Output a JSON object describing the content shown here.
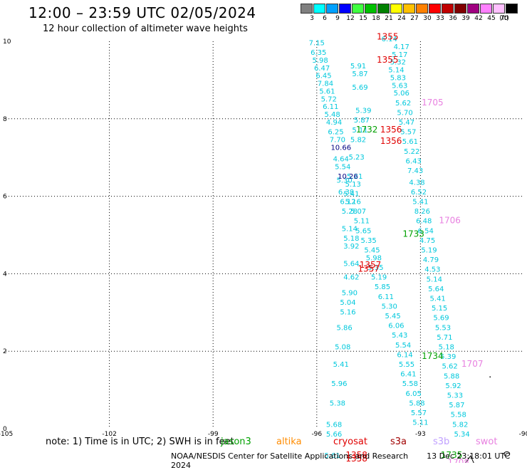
{
  "header": {
    "title": "12:00 – 23:59 UTC 02/05/2024",
    "subtitle": "12 hour collection of altimeter wave heights"
  },
  "scale": {
    "unit": "(ft)",
    "bins": [
      {
        "color": "#808080",
        "label": "3"
      },
      {
        "color": "#00ffff",
        "label": "6"
      },
      {
        "color": "#00a0ff",
        "label": "9"
      },
      {
        "color": "#0000ff",
        "label": "12"
      },
      {
        "color": "#40ff40",
        "label": "15"
      },
      {
        "color": "#00c000",
        "label": "18"
      },
      {
        "color": "#008000",
        "label": "21"
      },
      {
        "color": "#ffff00",
        "label": "24"
      },
      {
        "color": "#ffc000",
        "label": "27"
      },
      {
        "color": "#ff8000",
        "label": "30"
      },
      {
        "color": "#ff0000",
        "label": "33"
      },
      {
        "color": "#c00000",
        "label": "36"
      },
      {
        "color": "#800000",
        "label": "39"
      },
      {
        "color": "#a00080",
        "label": "42"
      },
      {
        "color": "#ff80ff",
        "label": "45"
      },
      {
        "color": "#ffc0ff",
        "label": "70"
      },
      {
        "color": "#000000",
        "label": ""
      }
    ]
  },
  "axes": {
    "lon_labels": [
      "-105",
      "-102",
      "-99",
      "-96",
      "-93",
      "-90"
    ],
    "lat_labels": [
      "0",
      "2",
      "4",
      "6",
      "8",
      "10"
    ]
  },
  "tracks": [
    {
      "color": "#00c8dc",
      "size": 10,
      "points": [
        {
          "lon": -96.0,
          "lat": 9.9,
          "t": "7.15"
        },
        {
          "lon": -95.95,
          "lat": 9.65,
          "t": "6.35"
        },
        {
          "lon": -95.9,
          "lat": 9.45,
          "t": "5.98"
        },
        {
          "lon": -95.85,
          "lat": 9.25,
          "t": "6.47"
        },
        {
          "lon": -95.8,
          "lat": 9.05,
          "t": "6.45"
        },
        {
          "lon": -95.75,
          "lat": 8.85,
          "t": "7.84"
        },
        {
          "lon": -95.7,
          "lat": 8.65,
          "t": "5.61"
        },
        {
          "lon": -95.65,
          "lat": 8.45,
          "t": "5.72"
        },
        {
          "lon": -95.6,
          "lat": 8.25,
          "t": "6.11"
        },
        {
          "lon": -95.55,
          "lat": 8.05,
          "t": "5.48"
        },
        {
          "lon": -95.5,
          "lat": 7.85,
          "t": "4.94"
        },
        {
          "lon": -95.45,
          "lat": 7.6,
          "t": "6.25"
        },
        {
          "lon": -95.4,
          "lat": 7.4,
          "t": "7.70"
        },
        {
          "lon": -95.3,
          "lat": 6.9,
          "t": "4.64"
        },
        {
          "lon": -95.25,
          "lat": 6.7,
          "t": "5.54"
        },
        {
          "lon": -95.2,
          "lat": 6.35,
          "t": "5.30"
        },
        {
          "lon": -95.15,
          "lat": 6.05,
          "t": "6.38"
        },
        {
          "lon": -95.1,
          "lat": 5.8,
          "t": "6.12"
        },
        {
          "lon": -95.05,
          "lat": 5.55,
          "t": "5.28"
        },
        {
          "lon": -95.05,
          "lat": 5.1,
          "t": "5.14"
        },
        {
          "lon": -95.0,
          "lat": 4.85,
          "t": "5.18"
        },
        {
          "lon": -95.0,
          "lat": 4.65,
          "t": "3.92"
        },
        {
          "lon": -95.0,
          "lat": 4.2,
          "t": "5.64"
        },
        {
          "lon": -95.0,
          "lat": 3.85,
          "t": "4.62"
        },
        {
          "lon": -95.05,
          "lat": 3.45,
          "t": "5.90"
        },
        {
          "lon": -95.1,
          "lat": 3.2,
          "t": "5.04"
        },
        {
          "lon": -95.1,
          "lat": 2.95,
          "t": "5.16"
        },
        {
          "lon": -95.2,
          "lat": 2.55,
          "t": "5.86"
        },
        {
          "lon": -95.25,
          "lat": 2.05,
          "t": "5.08"
        },
        {
          "lon": -95.3,
          "lat": 1.6,
          "t": "5.41"
        },
        {
          "lon": -95.35,
          "lat": 1.1,
          "t": "5.96"
        },
        {
          "lon": -95.4,
          "lat": 0.6,
          "t": "5.38"
        },
        {
          "lon": -95.5,
          "lat": 0.05,
          "t": "5.68"
        },
        {
          "lon": -95.5,
          "lat": -0.2,
          "t": "5.66"
        },
        {
          "lon": -95.55,
          "lat": -0.75,
          "t": "5.61"
        }
      ]
    },
    {
      "color": "#00c8dc",
      "size": 10,
      "points": [
        {
          "lon": -93.9,
          "lat": 10.0,
          "t": "6.14"
        },
        {
          "lon": -93.55,
          "lat": 9.8,
          "t": "4.17"
        },
        {
          "lon": -93.6,
          "lat": 9.6,
          "t": "5.17"
        },
        {
          "lon": -93.65,
          "lat": 9.4,
          "t": "5.32"
        },
        {
          "lon": -93.7,
          "lat": 9.2,
          "t": "5.14"
        },
        {
          "lon": -93.65,
          "lat": 9.0,
          "t": "5.83"
        },
        {
          "lon": -93.6,
          "lat": 8.8,
          "t": "5.63"
        },
        {
          "lon": -93.55,
          "lat": 8.6,
          "t": "5.06"
        },
        {
          "lon": -93.5,
          "lat": 8.35,
          "t": "5.62"
        },
        {
          "lon": -93.45,
          "lat": 8.1,
          "t": "5.70"
        },
        {
          "lon": -93.4,
          "lat": 7.85,
          "t": "5.47"
        },
        {
          "lon": -93.35,
          "lat": 7.6,
          "t": "5.57"
        },
        {
          "lon": -93.3,
          "lat": 7.35,
          "t": "5.61"
        },
        {
          "lon": -93.25,
          "lat": 7.1,
          "t": "5.22"
        },
        {
          "lon": -93.2,
          "lat": 6.85,
          "t": "6.43"
        },
        {
          "lon": -93.15,
          "lat": 6.6,
          "t": "7.43"
        },
        {
          "lon": -93.1,
          "lat": 6.3,
          "t": "4.38"
        },
        {
          "lon": -93.05,
          "lat": 6.05,
          "t": "6.52"
        },
        {
          "lon": -93.0,
          "lat": 5.8,
          "t": "5.41"
        },
        {
          "lon": -92.95,
          "lat": 5.55,
          "t": "8.26"
        },
        {
          "lon": -92.9,
          "lat": 5.3,
          "t": "6.48"
        },
        {
          "lon": -92.85,
          "lat": 5.05,
          "t": "6.54"
        },
        {
          "lon": -92.8,
          "lat": 4.8,
          "t": "4.75"
        },
        {
          "lon": -92.75,
          "lat": 4.55,
          "t": "5.19"
        },
        {
          "lon": -92.7,
          "lat": 4.3,
          "t": "4.79"
        },
        {
          "lon": -92.65,
          "lat": 4.05,
          "t": "4.53"
        },
        {
          "lon": -92.6,
          "lat": 3.8,
          "t": "5.14"
        },
        {
          "lon": -92.55,
          "lat": 3.55,
          "t": "5.64"
        },
        {
          "lon": -92.5,
          "lat": 3.3,
          "t": "5.41"
        },
        {
          "lon": -92.45,
          "lat": 3.05,
          "t": "5.15"
        },
        {
          "lon": -92.4,
          "lat": 2.8,
          "t": "5.69"
        },
        {
          "lon": -92.35,
          "lat": 2.55,
          "t": "5.53"
        },
        {
          "lon": -92.3,
          "lat": 2.3,
          "t": "5.71"
        },
        {
          "lon": -92.25,
          "lat": 2.05,
          "t": "5.18"
        },
        {
          "lon": -92.2,
          "lat": 1.8,
          "t": "5.39"
        },
        {
          "lon": -92.15,
          "lat": 1.55,
          "t": "5.62"
        },
        {
          "lon": -92.1,
          "lat": 1.3,
          "t": "5.88"
        },
        {
          "lon": -92.05,
          "lat": 1.05,
          "t": "5.92"
        },
        {
          "lon": -92.0,
          "lat": 0.8,
          "t": "5.33"
        },
        {
          "lon": -91.95,
          "lat": 0.55,
          "t": "5.87"
        },
        {
          "lon": -91.9,
          "lat": 0.3,
          "t": "5.58"
        },
        {
          "lon": -91.85,
          "lat": 0.05,
          "t": "5.82"
        },
        {
          "lon": -91.8,
          "lat": -0.2,
          "t": "5.34"
        }
      ]
    },
    {
      "color": "#00c8dc",
      "size": 10,
      "points": [
        {
          "lon": -94.8,
          "lat": 9.3,
          "t": "5.91"
        },
        {
          "lon": -94.75,
          "lat": 9.1,
          "t": "5.87"
        },
        {
          "lon": -94.75,
          "lat": 8.75,
          "t": "5.69"
        },
        {
          "lon": -94.65,
          "lat": 8.15,
          "t": "5.39"
        },
        {
          "lon": -94.7,
          "lat": 7.9,
          "t": "5.87"
        },
        {
          "lon": -94.75,
          "lat": 7.65,
          "t": "5.11"
        },
        {
          "lon": -94.8,
          "lat": 7.4,
          "t": "5.82"
        },
        {
          "lon": -94.85,
          "lat": 6.95,
          "t": "5.23"
        },
        {
          "lon": -94.9,
          "lat": 6.45,
          "t": "5.21"
        },
        {
          "lon": -94.95,
          "lat": 6.25,
          "t": "5.13"
        },
        {
          "lon": -95.0,
          "lat": 6.0,
          "t": "5.41"
        },
        {
          "lon": -94.95,
          "lat": 5.8,
          "t": "5.16"
        },
        {
          "lon": -94.8,
          "lat": 5.55,
          "t": "5.07"
        },
        {
          "lon": -94.7,
          "lat": 5.3,
          "t": "5.11"
        },
        {
          "lon": -94.65,
          "lat": 5.05,
          "t": "5.65"
        },
        {
          "lon": -94.5,
          "lat": 4.8,
          "t": "5.35"
        },
        {
          "lon": -94.4,
          "lat": 4.55,
          "t": "5.45"
        },
        {
          "lon": -94.35,
          "lat": 4.35,
          "t": "5.98"
        },
        {
          "lon": -94.3,
          "lat": 4.1,
          "t": "5.35"
        },
        {
          "lon": -94.2,
          "lat": 3.85,
          "t": "5.19"
        },
        {
          "lon": -94.1,
          "lat": 3.6,
          "t": "5.85"
        },
        {
          "lon": -94.0,
          "lat": 3.35,
          "t": "6.11"
        },
        {
          "lon": -93.9,
          "lat": 3.1,
          "t": "5.30"
        },
        {
          "lon": -93.8,
          "lat": 2.85,
          "t": "5.45"
        },
        {
          "lon": -93.7,
          "lat": 2.6,
          "t": "6.06"
        },
        {
          "lon": -93.6,
          "lat": 2.35,
          "t": "5.43"
        },
        {
          "lon": -93.5,
          "lat": 2.1,
          "t": "5.54"
        },
        {
          "lon": -93.45,
          "lat": 1.85,
          "t": "6.14"
        },
        {
          "lon": -93.4,
          "lat": 1.6,
          "t": "5.55"
        },
        {
          "lon": -93.35,
          "lat": 1.35,
          "t": "6.41"
        },
        {
          "lon": -93.3,
          "lat": 1.1,
          "t": "5.58"
        },
        {
          "lon": -93.2,
          "lat": 0.85,
          "t": "6.05"
        },
        {
          "lon": -93.1,
          "lat": 0.6,
          "t": "5.88"
        },
        {
          "lon": -93.05,
          "lat": 0.35,
          "t": "5.57"
        },
        {
          "lon": -93.0,
          "lat": 0.1,
          "t": "5.11"
        }
      ]
    },
    {
      "color": "#000080",
      "size": 10,
      "points": [
        {
          "lon": -95.3,
          "lat": 7.2,
          "t": "10.66"
        },
        {
          "lon": -95.1,
          "lat": 6.45,
          "t": "10.26"
        }
      ]
    },
    {
      "color": "#00a000",
      "size": 12,
      "points": [
        {
          "lon": -94.55,
          "lat": 7.65,
          "t": "1732"
        },
        {
          "lon": -93.2,
          "lat": 4.95,
          "t": "1733"
        },
        {
          "lon": -92.65,
          "lat": 1.8,
          "t": "1734"
        },
        {
          "lon": -92.1,
          "lat": -0.75,
          "t": "1735"
        }
      ]
    },
    {
      "color": "#e00000",
      "size": 12,
      "points": [
        {
          "lon": -93.95,
          "lat": 10.05,
          "t": "1355"
        },
        {
          "lon": -93.95,
          "lat": 9.45,
          "t": "1355"
        },
        {
          "lon": -93.85,
          "lat": 7.65,
          "t": "1356"
        },
        {
          "lon": -93.85,
          "lat": 7.35,
          "t": "1356"
        },
        {
          "lon": -94.45,
          "lat": 4.15,
          "t": "1357"
        },
        {
          "lon": -94.5,
          "lat": 4.05,
          "t": "1357"
        },
        {
          "lon": -94.85,
          "lat": -0.75,
          "t": "1358"
        },
        {
          "lon": -94.85,
          "lat": -0.85,
          "t": "1358"
        }
      ]
    },
    {
      "color": "#e880e0",
      "size": 12,
      "points": [
        {
          "lon": -92.65,
          "lat": 8.35,
          "t": "1705"
        },
        {
          "lon": -92.15,
          "lat": 5.3,
          "t": "1706"
        },
        {
          "lon": -91.5,
          "lat": 1.6,
          "t": "1707"
        },
        {
          "lon": -91.9,
          "lat": -0.95,
          "t": "1708"
        }
      ]
    }
  ],
  "land": {
    "color": "#000000",
    "shapes": [
      {
        "type": "coast",
        "points": [
          [
            -91.75,
            -0.95
          ],
          [
            -91.55,
            -0.7
          ],
          [
            -91.4,
            -1.0
          ],
          [
            -91.45,
            -1.05
          ]
        ]
      },
      {
        "type": "island",
        "lon": -90.5,
        "lat": -0.65,
        "r": 0.08
      },
      {
        "type": "dot",
        "lon": -91.0,
        "lat": 1.35
      }
    ]
  },
  "notes": {
    "text": "note:  1) Time is in UTC; 2) SWH is in feet",
    "satellites": [
      {
        "name": "jason3",
        "color": "#00a000"
      },
      {
        "name": "altika",
        "color": "#ff8c00"
      },
      {
        "name": "cryosat",
        "color": "#e00000"
      },
      {
        "name": "s3a",
        "color": "#a00000"
      },
      {
        "name": "s3b",
        "color": "#c0a0ff"
      },
      {
        "name": "swot",
        "color": "#e880e0"
      }
    ]
  },
  "footer": {
    "credit": "NOAA/NESDIS Center for Satellite Applications and Research",
    "timestamp": "13 Dec 23:18:01 UTC 2024"
  }
}
